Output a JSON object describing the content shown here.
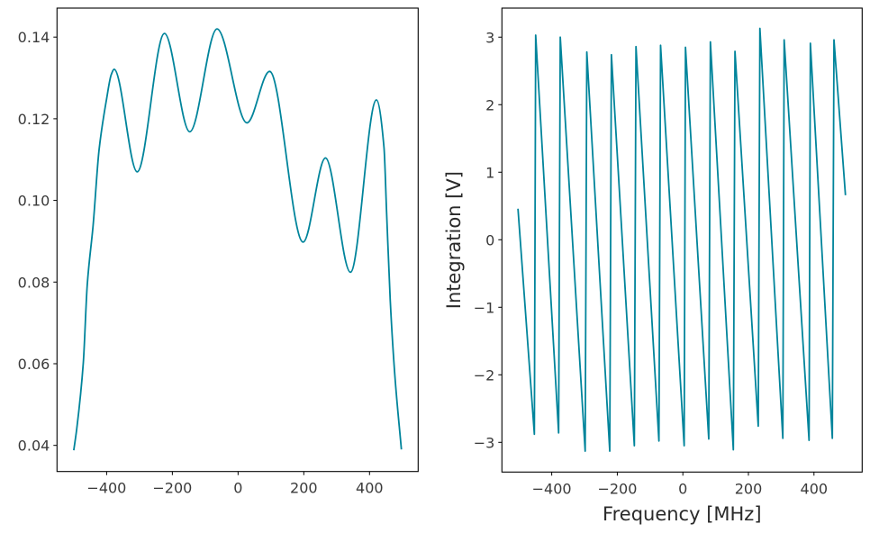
{
  "chart_data": [
    {
      "type": "line",
      "title": "",
      "xlabel": "",
      "ylabel": "",
      "xlim": [
        -551,
        548
      ],
      "ylim": [
        0.0336,
        0.1471
      ],
      "grid": false,
      "x_ticks": [
        -400,
        -200,
        0,
        200,
        400
      ],
      "x_tick_labels": [
        "−400",
        "−200",
        "0",
        "200",
        "400"
      ],
      "y_ticks": [
        0.04,
        0.06,
        0.08,
        0.1,
        0.12,
        0.14
      ],
      "y_tick_labels": [
        "0.04",
        "0.06",
        "0.08",
        "0.10",
        "0.12",
        "0.14"
      ],
      "color": "#00849b",
      "series": [
        {
          "x": [
            -500,
            -491,
            -471,
            -459,
            -441,
            -423,
            -400,
            -386,
            -377,
            -307,
            -224,
            -147,
            -64,
            27,
            96,
            198,
            266,
            342,
            421,
            444,
            452,
            463,
            477,
            497
          ],
          "y": [
            0.0388,
            0.044,
            0.0602,
            0.0793,
            0.094,
            0.1124,
            0.1249,
            0.1308,
            0.1321,
            0.107,
            0.1409,
            0.1168,
            0.142,
            0.119,
            0.1316,
            0.0898,
            0.1104,
            0.0824,
            0.1246,
            0.113,
            0.097,
            0.0756,
            0.0572,
            0.039
          ]
        }
      ]
    },
    {
      "type": "line",
      "title": "",
      "xlabel": "Frequency [MHz]",
      "ylabel": "Integration [V]",
      "xlim": [
        -552,
        547
      ],
      "ylim": [
        -3.44,
        3.43
      ],
      "grid": false,
      "x_ticks": [
        -400,
        -200,
        0,
        200,
        400
      ],
      "x_tick_labels": [
        "−400",
        "−200",
        "0",
        "200",
        "400"
      ],
      "y_ticks": [
        -3,
        -2,
        -1,
        0,
        1,
        2,
        3
      ],
      "y_tick_labels": [
        "−3",
        "−2",
        "−1",
        "0",
        "1",
        "2",
        "3"
      ],
      "color": "#00849b",
      "series": [
        {
          "x": [
            -503,
            -453,
            -449,
            -379,
            -374,
            -298,
            -293,
            -223,
            -218,
            -148,
            -143,
            -73,
            -68,
            4,
            8,
            79,
            84,
            154,
            159,
            230,
            235,
            305,
            309,
            385,
            389,
            456,
            461,
            496
          ],
          "y": [
            0.46,
            -2.88,
            3.03,
            -2.86,
            3.0,
            -3.13,
            2.78,
            -3.13,
            2.74,
            -3.05,
            2.86,
            -2.98,
            2.88,
            -3.05,
            2.85,
            -2.95,
            2.93,
            -3.11,
            2.79,
            -2.76,
            3.13,
            -2.94,
            2.96,
            -2.97,
            2.91,
            -2.94,
            2.96,
            0.66
          ]
        }
      ]
    }
  ]
}
